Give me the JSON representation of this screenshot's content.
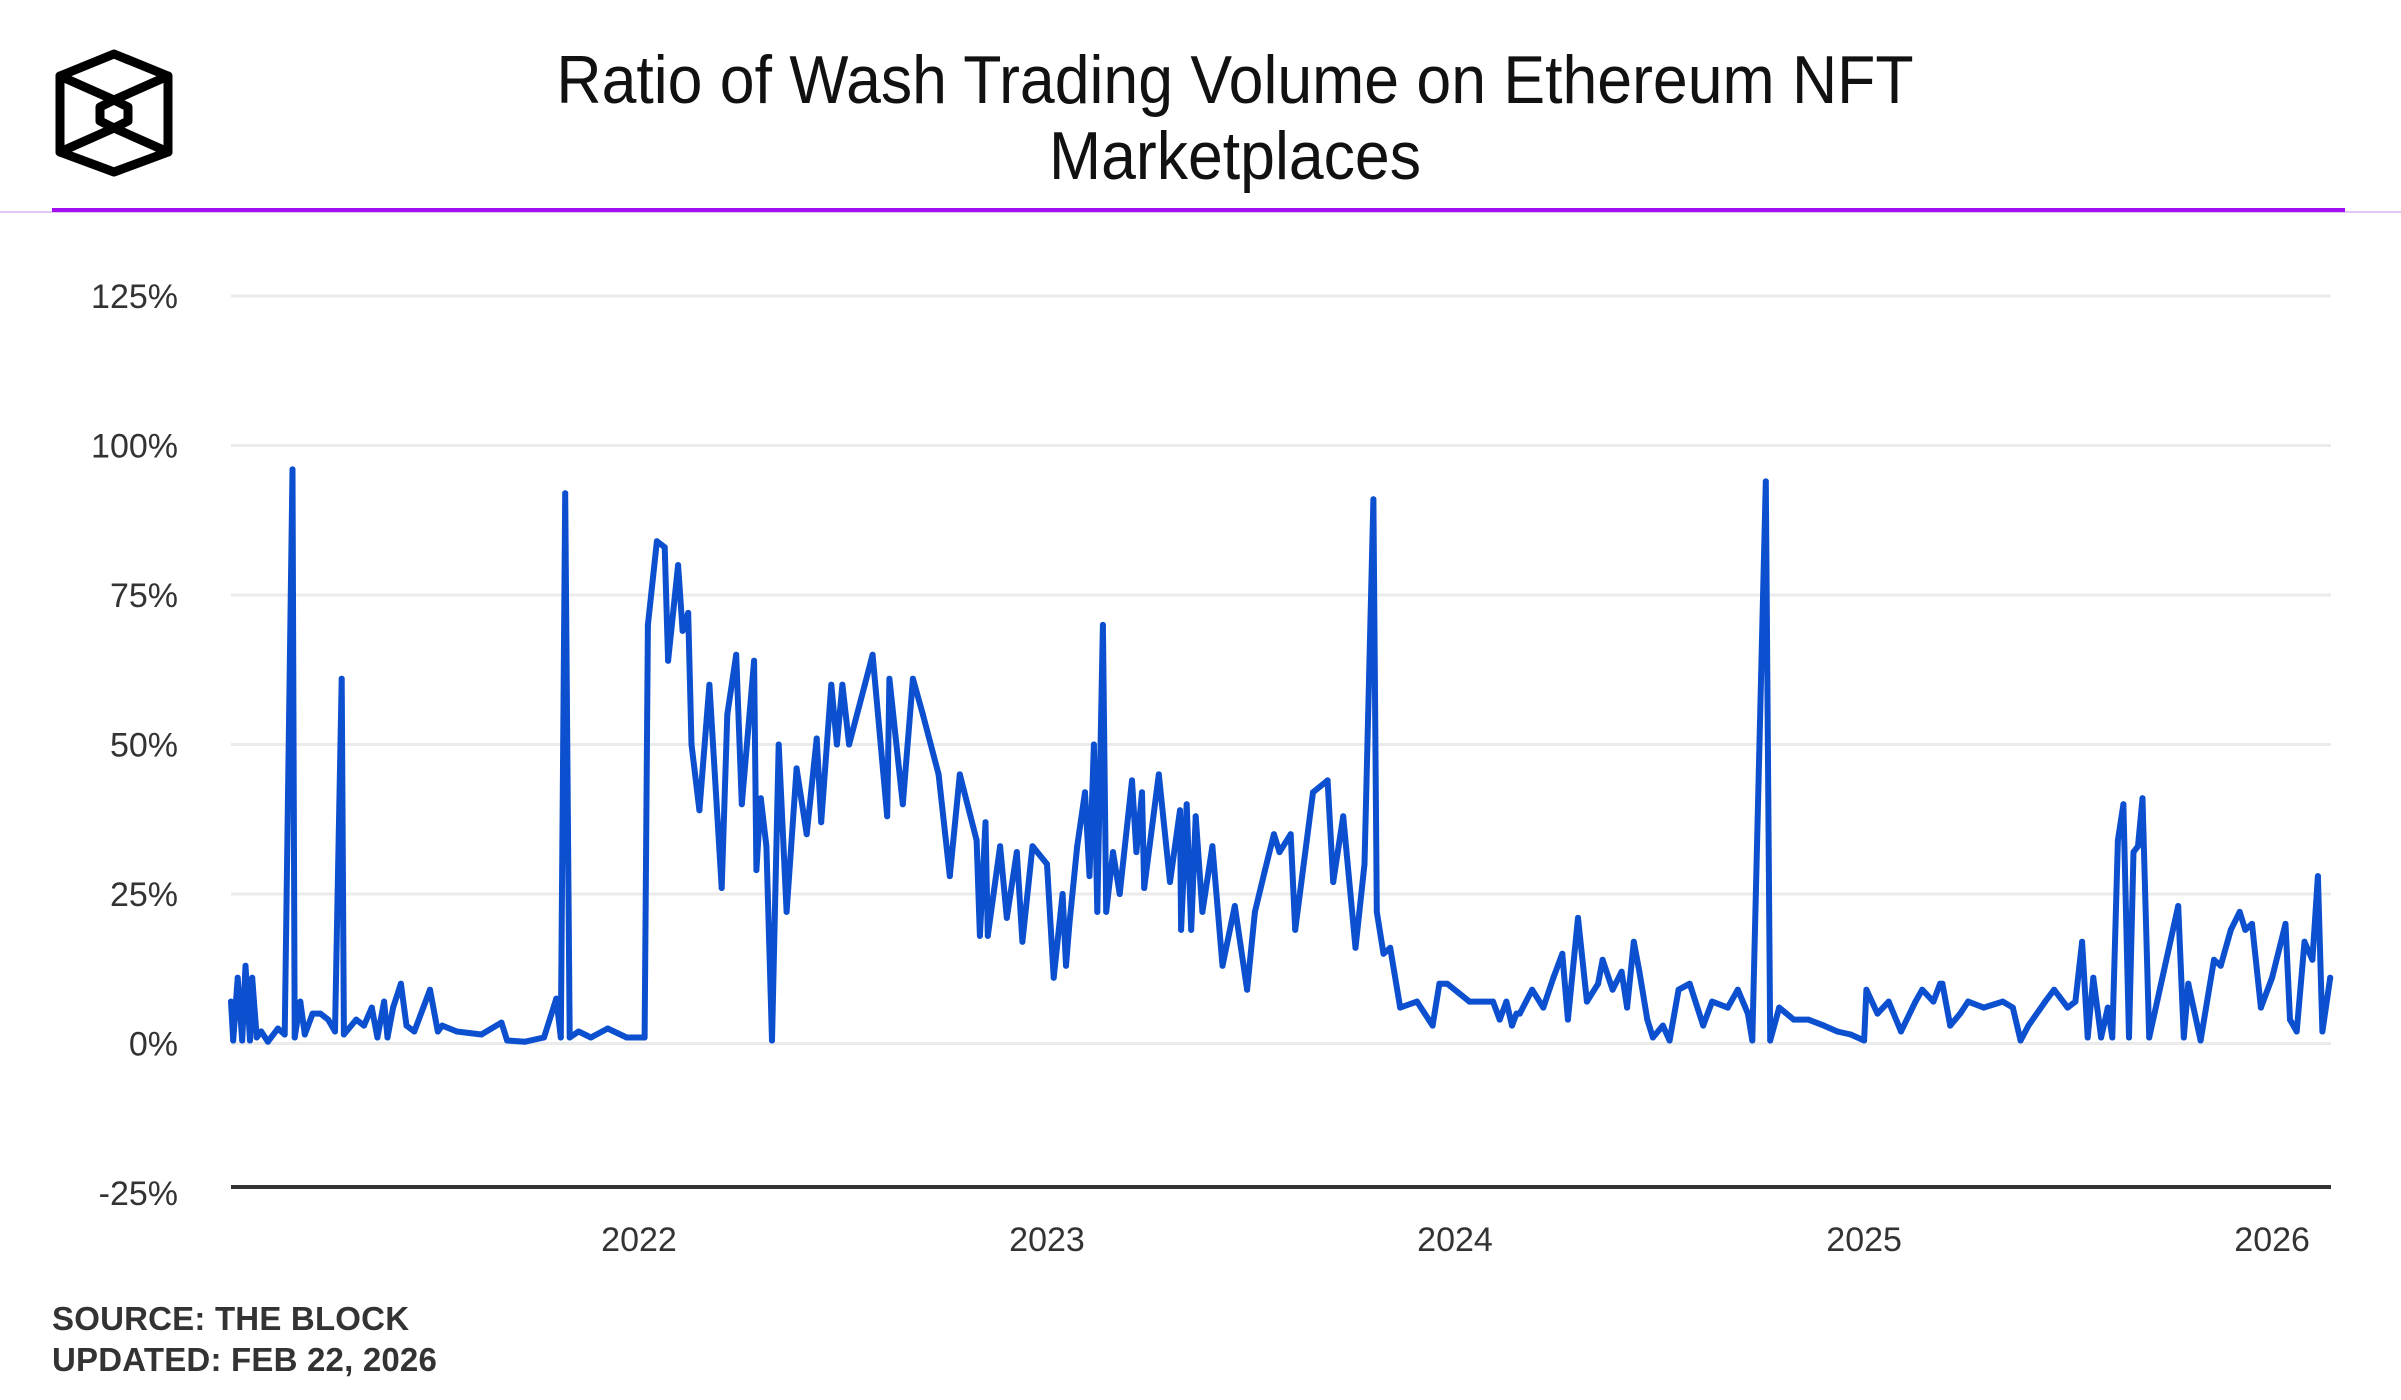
{
  "header": {
    "logo": "the-block-cube-logo",
    "title_line1": "Ratio of Wash Trading Volume on Ethereum NFT",
    "title_line2": "Marketplaces",
    "accent_color": "#a20ff0"
  },
  "footer": {
    "source": "SOURCE: THE BLOCK",
    "updated": "UPDATED: FEB 22, 2026"
  },
  "chart_data": {
    "type": "line",
    "title": "Ratio of Wash Trading Volume on Ethereum NFT Marketplaces",
    "xlabel": "",
    "ylabel": "",
    "ylim": [
      -25,
      125
    ],
    "xlim": [
      "2021-01-01",
      "2026-02-22"
    ],
    "grid": true,
    "legend": "none",
    "yticks": [
      {
        "value": 125,
        "label": "125%"
      },
      {
        "value": 100,
        "label": "100%"
      },
      {
        "value": 75,
        "label": "75%"
      },
      {
        "value": 50,
        "label": "50%"
      },
      {
        "value": 25,
        "label": "25%"
      },
      {
        "value": 0,
        "label": "0%"
      },
      {
        "value": -25,
        "label": "-25%"
      }
    ],
    "xticks": [
      {
        "value": "2022-01-01",
        "label": "2022"
      },
      {
        "value": "2023-01-01",
        "label": "2023"
      },
      {
        "value": "2024-01-01",
        "label": "2024"
      },
      {
        "value": "2025-01-01",
        "label": "2025"
      },
      {
        "value": "2026-01-01",
        "label": "2026"
      }
    ],
    "series": [
      {
        "name": "Wash Trading Ratio",
        "color": "#0c50d0",
        "unit": "%",
        "points": [
          [
            "2021-01-01",
            7
          ],
          [
            "2021-01-03",
            0.5
          ],
          [
            "2021-01-07",
            11
          ],
          [
            "2021-01-11",
            0.5
          ],
          [
            "2021-01-14",
            13
          ],
          [
            "2021-01-18",
            0.5
          ],
          [
            "2021-01-20",
            11
          ],
          [
            "2021-01-24",
            1
          ],
          [
            "2021-01-28",
            2
          ],
          [
            "2021-02-03",
            0.3
          ],
          [
            "2021-02-12",
            2.5
          ],
          [
            "2021-02-18",
            1.5
          ],
          [
            "2021-02-25",
            96
          ],
          [
            "2021-02-27",
            1
          ],
          [
            "2021-03-04",
            7
          ],
          [
            "2021-03-08",
            1.5
          ],
          [
            "2021-03-15",
            5
          ],
          [
            "2021-03-22",
            5
          ],
          [
            "2021-03-29",
            4
          ],
          [
            "2021-04-04",
            2
          ],
          [
            "2021-04-10",
            61
          ],
          [
            "2021-04-12",
            1.5
          ],
          [
            "2021-04-23",
            4
          ],
          [
            "2021-04-30",
            3
          ],
          [
            "2021-05-07",
            6
          ],
          [
            "2021-05-12",
            1
          ],
          [
            "2021-05-18",
            7
          ],
          [
            "2021-05-21",
            1
          ],
          [
            "2021-05-26",
            6
          ],
          [
            "2021-06-02",
            10
          ],
          [
            "2021-06-07",
            3
          ],
          [
            "2021-06-14",
            2
          ],
          [
            "2021-06-22",
            6
          ],
          [
            "2021-06-28",
            9
          ],
          [
            "2021-07-05",
            2
          ],
          [
            "2021-07-09",
            3
          ],
          [
            "2021-07-22",
            2
          ],
          [
            "2021-08-13",
            1.5
          ],
          [
            "2021-08-31",
            3.5
          ],
          [
            "2021-09-05",
            0.5
          ],
          [
            "2021-09-21",
            0.3
          ],
          [
            "2021-10-08",
            1
          ],
          [
            "2021-10-19",
            7.5
          ],
          [
            "2021-10-23",
            1
          ],
          [
            "2021-10-27",
            92
          ],
          [
            "2021-10-31",
            1
          ],
          [
            "2021-11-08",
            2
          ],
          [
            "2021-11-19",
            1
          ],
          [
            "2021-12-04",
            2.5
          ],
          [
            "2021-12-21",
            1
          ],
          [
            "2022-01-06",
            1
          ],
          [
            "2022-01-09",
            70
          ],
          [
            "2022-01-17",
            84
          ],
          [
            "2022-01-24",
            83
          ],
          [
            "2022-01-27",
            64
          ],
          [
            "2022-02-05",
            80
          ],
          [
            "2022-02-09",
            69
          ],
          [
            "2022-02-14",
            72
          ],
          [
            "2022-02-17",
            50
          ],
          [
            "2022-02-24",
            39
          ],
          [
            "2022-03-05",
            60
          ],
          [
            "2022-03-16",
            26
          ],
          [
            "2022-03-21",
            55
          ],
          [
            "2022-03-29",
            65
          ],
          [
            "2022-04-03",
            40
          ],
          [
            "2022-04-14",
            64
          ],
          [
            "2022-04-16",
            29
          ],
          [
            "2022-04-20",
            41
          ],
          [
            "2022-04-25",
            33
          ],
          [
            "2022-04-30",
            0.5
          ],
          [
            "2022-05-06",
            50
          ],
          [
            "2022-05-13",
            22
          ],
          [
            "2022-05-22",
            46
          ],
          [
            "2022-05-31",
            35
          ],
          [
            "2022-06-09",
            51
          ],
          [
            "2022-06-13",
            37
          ],
          [
            "2022-06-22",
            60
          ],
          [
            "2022-06-27",
            50
          ],
          [
            "2022-07-02",
            60
          ],
          [
            "2022-07-08",
            50
          ],
          [
            "2022-07-22",
            60
          ],
          [
            "2022-07-29",
            65
          ],
          [
            "2022-08-11",
            38
          ],
          [
            "2022-08-13",
            61
          ],
          [
            "2022-08-25",
            40
          ],
          [
            "2022-09-03",
            61
          ],
          [
            "2022-09-12",
            55
          ],
          [
            "2022-09-26",
            45
          ],
          [
            "2022-10-06",
            28
          ],
          [
            "2022-10-15",
            45
          ],
          [
            "2022-10-30",
            34
          ],
          [
            "2022-11-02",
            18
          ],
          [
            "2022-11-07",
            37
          ],
          [
            "2022-11-09",
            18
          ],
          [
            "2022-11-20",
            33
          ],
          [
            "2022-11-26",
            21
          ],
          [
            "2022-12-05",
            32
          ],
          [
            "2022-12-10",
            17
          ],
          [
            "2022-12-19",
            33
          ],
          [
            "2023-01-01",
            30
          ],
          [
            "2023-01-07",
            11
          ],
          [
            "2023-01-15",
            25
          ],
          [
            "2023-01-18",
            13
          ],
          [
            "2023-01-21",
            20
          ],
          [
            "2023-01-28",
            33
          ],
          [
            "2023-02-04",
            42
          ],
          [
            "2023-02-08",
            28
          ],
          [
            "2023-02-12",
            50
          ],
          [
            "2023-02-15",
            22
          ],
          [
            "2023-02-20",
            70
          ],
          [
            "2023-02-23",
            22
          ],
          [
            "2023-03-01",
            32
          ],
          [
            "2023-03-07",
            25
          ],
          [
            "2023-03-18",
            44
          ],
          [
            "2023-03-22",
            32
          ],
          [
            "2023-03-27",
            42
          ],
          [
            "2023-03-29",
            26
          ],
          [
            "2023-04-11",
            45
          ],
          [
            "2023-04-21",
            27
          ],
          [
            "2023-04-30",
            39
          ],
          [
            "2023-05-01",
            19
          ],
          [
            "2023-05-06",
            40
          ],
          [
            "2023-05-10",
            19
          ],
          [
            "2023-05-14",
            38
          ],
          [
            "2023-05-20",
            22
          ],
          [
            "2023-05-29",
            33
          ],
          [
            "2023-06-07",
            13
          ],
          [
            "2023-06-18",
            23
          ],
          [
            "2023-06-29",
            9
          ],
          [
            "2023-07-06",
            22
          ],
          [
            "2023-07-15",
            29
          ],
          [
            "2023-07-23",
            35
          ],
          [
            "2023-07-28",
            32
          ],
          [
            "2023-08-07",
            35
          ],
          [
            "2023-08-11",
            19
          ],
          [
            "2023-08-27",
            42
          ],
          [
            "2023-09-09",
            44
          ],
          [
            "2023-09-14",
            27
          ],
          [
            "2023-09-23",
            38
          ],
          [
            "2023-10-04",
            16
          ],
          [
            "2023-10-12",
            30
          ],
          [
            "2023-10-20",
            91
          ],
          [
            "2023-10-23",
            22
          ],
          [
            "2023-10-29",
            15
          ],
          [
            "2023-11-04",
            16
          ],
          [
            "2023-11-13",
            6
          ],
          [
            "2023-11-28",
            7
          ],
          [
            "2023-12-12",
            3
          ],
          [
            "2023-12-18",
            10
          ],
          [
            "2023-12-25",
            10
          ],
          [
            "2024-01-14",
            7
          ],
          [
            "2024-02-04",
            7
          ],
          [
            "2024-02-10",
            4
          ],
          [
            "2024-02-16",
            7
          ],
          [
            "2024-02-21",
            3
          ],
          [
            "2024-02-25",
            5
          ],
          [
            "2024-02-28",
            5
          ],
          [
            "2024-03-10",
            9
          ],
          [
            "2024-03-20",
            6
          ],
          [
            "2024-03-29",
            11
          ],
          [
            "2024-04-06",
            15
          ],
          [
            "2024-04-11",
            4
          ],
          [
            "2024-04-20",
            21
          ],
          [
            "2024-04-28",
            7
          ],
          [
            "2024-05-08",
            10
          ],
          [
            "2024-05-12",
            14
          ],
          [
            "2024-05-21",
            9
          ],
          [
            "2024-05-29",
            12
          ],
          [
            "2024-06-03",
            6
          ],
          [
            "2024-06-09",
            17
          ],
          [
            "2024-06-14",
            12
          ],
          [
            "2024-06-21",
            4
          ],
          [
            "2024-06-26",
            1
          ],
          [
            "2024-07-05",
            3
          ],
          [
            "2024-07-11",
            0.5
          ],
          [
            "2024-07-19",
            9
          ],
          [
            "2024-07-29",
            10
          ],
          [
            "2024-08-10",
            3
          ],
          [
            "2024-08-18",
            7
          ],
          [
            "2024-09-01",
            6
          ],
          [
            "2024-09-10",
            9
          ],
          [
            "2024-09-19",
            5
          ],
          [
            "2024-09-23",
            0.5
          ],
          [
            "2024-10-05",
            94
          ],
          [
            "2024-10-09",
            0.5
          ],
          [
            "2024-10-17",
            6
          ],
          [
            "2024-10-30",
            4
          ],
          [
            "2024-11-12",
            4
          ],
          [
            "2024-11-26",
            3
          ],
          [
            "2024-12-08",
            2
          ],
          [
            "2024-12-20",
            1.5
          ],
          [
            "2025-01-01",
            0.5
          ],
          [
            "2025-01-03",
            9
          ],
          [
            "2025-01-13",
            5
          ],
          [
            "2025-01-23",
            7
          ],
          [
            "2025-02-03",
            2
          ],
          [
            "2025-02-16",
            7
          ],
          [
            "2025-02-22",
            9
          ],
          [
            "2025-03-04",
            7
          ],
          [
            "2025-03-10",
            10
          ],
          [
            "2025-03-12",
            10
          ],
          [
            "2025-03-19",
            3
          ],
          [
            "2025-03-28",
            5
          ],
          [
            "2025-04-04",
            7
          ],
          [
            "2025-04-18",
            6
          ],
          [
            "2025-05-05",
            7
          ],
          [
            "2025-05-14",
            6
          ],
          [
            "2025-05-21",
            0.5
          ],
          [
            "2025-05-28",
            3
          ],
          [
            "2025-06-12",
            7
          ],
          [
            "2025-06-20",
            9
          ],
          [
            "2025-07-02",
            6
          ],
          [
            "2025-07-09",
            7
          ],
          [
            "2025-07-15",
            17
          ],
          [
            "2025-07-20",
            1
          ],
          [
            "2025-07-25",
            11
          ],
          [
            "2025-08-01",
            1
          ],
          [
            "2025-08-07",
            6
          ],
          [
            "2025-08-11",
            1
          ],
          [
            "2025-08-16",
            34
          ],
          [
            "2025-08-21",
            40
          ],
          [
            "2025-08-26",
            1
          ],
          [
            "2025-08-30",
            32
          ],
          [
            "2025-09-03",
            33
          ],
          [
            "2025-09-07",
            41
          ],
          [
            "2025-09-13",
            1
          ],
          [
            "2025-09-26",
            12
          ],
          [
            "2025-10-09",
            23
          ],
          [
            "2025-10-14",
            1
          ],
          [
            "2025-10-18",
            10
          ],
          [
            "2025-10-29",
            0.5
          ],
          [
            "2025-11-10",
            14
          ],
          [
            "2025-11-16",
            13
          ],
          [
            "2025-11-25",
            19
          ],
          [
            "2025-12-03",
            22
          ],
          [
            "2025-12-08",
            19
          ],
          [
            "2025-12-14",
            20
          ],
          [
            "2025-12-22",
            6
          ],
          [
            "2026-01-01",
            11
          ],
          [
            "2026-01-13",
            20
          ],
          [
            "2026-01-17",
            4
          ],
          [
            "2026-01-23",
            2
          ],
          [
            "2026-01-30",
            17
          ],
          [
            "2026-02-06",
            14
          ],
          [
            "2026-02-11",
            28
          ],
          [
            "2026-02-15",
            2
          ],
          [
            "2026-02-22",
            11
          ]
        ]
      }
    ]
  }
}
